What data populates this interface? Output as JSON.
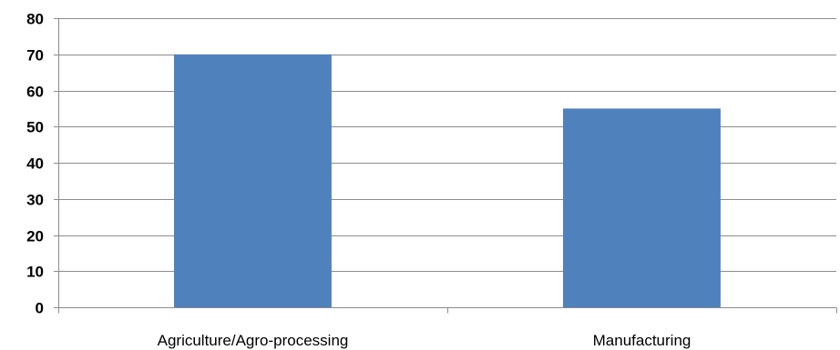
{
  "chart_data": {
    "type": "bar",
    "categories": [
      "Agriculture/Agro-processing",
      "Manufacturing"
    ],
    "values": [
      70,
      55
    ],
    "ylim": [
      0,
      80
    ],
    "yticks": [
      0,
      10,
      20,
      30,
      40,
      50,
      60,
      70,
      80
    ],
    "grid": true,
    "legend": "none",
    "colors": {
      "bar": "#4F81BD",
      "grid": "#8C8C8C",
      "axis": "#8C8C8C"
    }
  }
}
